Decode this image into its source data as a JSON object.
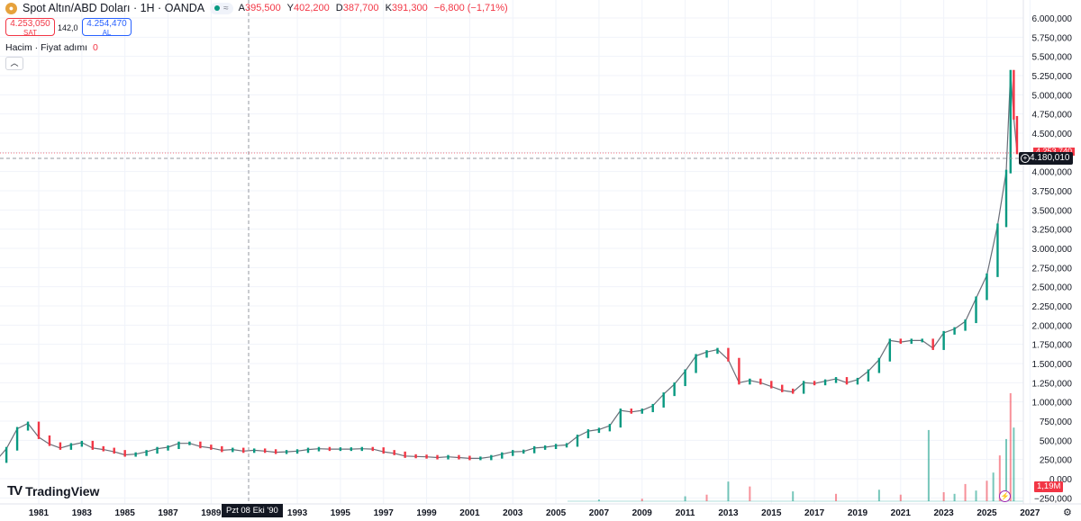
{
  "header": {
    "symbol_icon": "gold-coin-icon",
    "title": "Spot Altın/ABD Doları · 1H · OANDA",
    "market_status_icon": "market-open-dot-icon",
    "market_status_mark": "≈",
    "ohlc": {
      "open_label": "A",
      "open_value": "395,500",
      "high_label": "Y",
      "high_value": "402,200",
      "low_label": "D",
      "low_value": "387,700",
      "close_label": "K",
      "close_value": "391,300",
      "change": "−6,800 (−1,71%)"
    }
  },
  "trade": {
    "sell_price": "4.253,050",
    "sell_label": "SAT",
    "spread": "142,0",
    "buy_price": "4.254,470",
    "buy_label": "AL"
  },
  "volume_legend": {
    "label": "Hacim · Fiyat adımı",
    "value": "0"
  },
  "logo": {
    "text": "TradingView",
    "icon": "tradingview-logo-icon"
  },
  "price_axis": {
    "ticks": [
      "6.000,000",
      "5.750,000",
      "5.500,000",
      "5.250,000",
      "5.000,000",
      "4.750,000",
      "4.500,000",
      "4.250,000",
      "4.000,000",
      "3.750,000",
      "3.500,000",
      "3.250,000",
      "3.000,000",
      "2.750,000",
      "2.500,000",
      "2.250,000",
      "2.000,000",
      "1.750,000",
      "1.500,000",
      "1.250,000",
      "1.000,000",
      "750,000",
      "500,000",
      "250,000",
      "0,000",
      "−250,000"
    ],
    "crosshair_price": "4.180,010",
    "last_price": "4.253,740",
    "volume_value": "1,19M"
  },
  "time_axis": {
    "ticks": [
      "1981",
      "1983",
      "1985",
      "1987",
      "1989",
      "1993",
      "1995",
      "1997",
      "1999",
      "2001",
      "2003",
      "2005",
      "2007",
      "2009",
      "2011",
      "2013",
      "2015",
      "2017",
      "2019",
      "2021",
      "2023",
      "2025",
      "2027"
    ],
    "crosshair_date": "Pzt 08 Eki '90"
  },
  "colors": {
    "up": "#089981",
    "down": "#f23645",
    "grid": "#f0f3fa",
    "crosshair": "#9598a1"
  },
  "chart_data": {
    "type": "candlestick",
    "title": "Spot Altın/ABD Doları · 1H · OANDA",
    "xlabel": "",
    "ylabel": "",
    "xlim": [
      1979.0,
      2027.6
    ],
    "ylim": [
      -250,
      6000
    ],
    "grid": true,
    "price_x": [
      1979.0,
      1979.5,
      1980.0,
      1980.5,
      1981.0,
      1981.5,
      1982.0,
      1982.5,
      1983.0,
      1983.5,
      1984.0,
      1984.5,
      1985.0,
      1985.5,
      1986.0,
      1986.5,
      1987.0,
      1987.5,
      1988.0,
      1988.5,
      1989.0,
      1989.5,
      1990.0,
      1990.5,
      1991.0,
      1991.5,
      1992.0,
      1992.5,
      1993.0,
      1993.5,
      1994.0,
      1994.5,
      1995.0,
      1995.5,
      1996.0,
      1996.5,
      1997.0,
      1997.5,
      1998.0,
      1998.5,
      1999.0,
      1999.5,
      2000.0,
      2000.5,
      2001.0,
      2001.5,
      2002.0,
      2002.5,
      2003.0,
      2003.5,
      2004.0,
      2004.5,
      2005.0,
      2005.5,
      2006.0,
      2006.5,
      2007.0,
      2007.5,
      2008.0,
      2008.5,
      2009.0,
      2009.5,
      2010.0,
      2010.5,
      2011.0,
      2011.5,
      2012.0,
      2012.5,
      2013.0,
      2013.5,
      2014.0,
      2014.5,
      2015.0,
      2015.5,
      2016.0,
      2016.5,
      2017.0,
      2017.5,
      2018.0,
      2018.5,
      2019.0,
      2019.5,
      2020.0,
      2020.5,
      2021.0,
      2021.5,
      2022.0,
      2022.5,
      2023.0,
      2023.5,
      2024.0,
      2024.5,
      2025.0,
      2025.5,
      2025.9,
      2026.1,
      2026.25,
      2026.4
    ],
    "price_y": [
      230,
      390,
      650,
      720,
      540,
      450,
      400,
      440,
      470,
      400,
      380,
      350,
      310,
      320,
      350,
      390,
      410,
      460,
      460,
      420,
      400,
      370,
      380,
      360,
      370,
      360,
      345,
      350,
      360,
      380,
      390,
      385,
      385,
      385,
      390,
      385,
      350,
      330,
      295,
      290,
      285,
      275,
      285,
      275,
      265,
      265,
      285,
      320,
      350,
      355,
      400,
      410,
      430,
      440,
      550,
      620,
      640,
      690,
      890,
      870,
      890,
      950,
      1100,
      1230,
      1400,
      1600,
      1650,
      1680,
      1550,
      1250,
      1280,
      1250,
      1200,
      1150,
      1130,
      1250,
      1240,
      1270,
      1300,
      1250,
      1290,
      1400,
      1550,
      1800,
      1780,
      1800,
      1800,
      1700,
      1900,
      1950,
      2050,
      2350,
      2650,
      3300,
      4000,
      5300,
      4700,
      4250
    ],
    "volume_x": [
      2007,
      2009,
      2011,
      2012,
      2013,
      2014,
      2016,
      2018,
      2020,
      2021,
      2022.3,
      2023,
      2023.5,
      2024,
      2024.5,
      2025,
      2025.3,
      2025.6,
      2025.9,
      2026.1,
      2026.25
    ],
    "volume_y": [
      20,
      30,
      60,
      80,
      240,
      180,
      120,
      90,
      140,
      80,
      870,
      110,
      90,
      210,
      130,
      250,
      350,
      560,
      760,
      1320,
      900
    ],
    "volume_current": "1,19M"
  }
}
